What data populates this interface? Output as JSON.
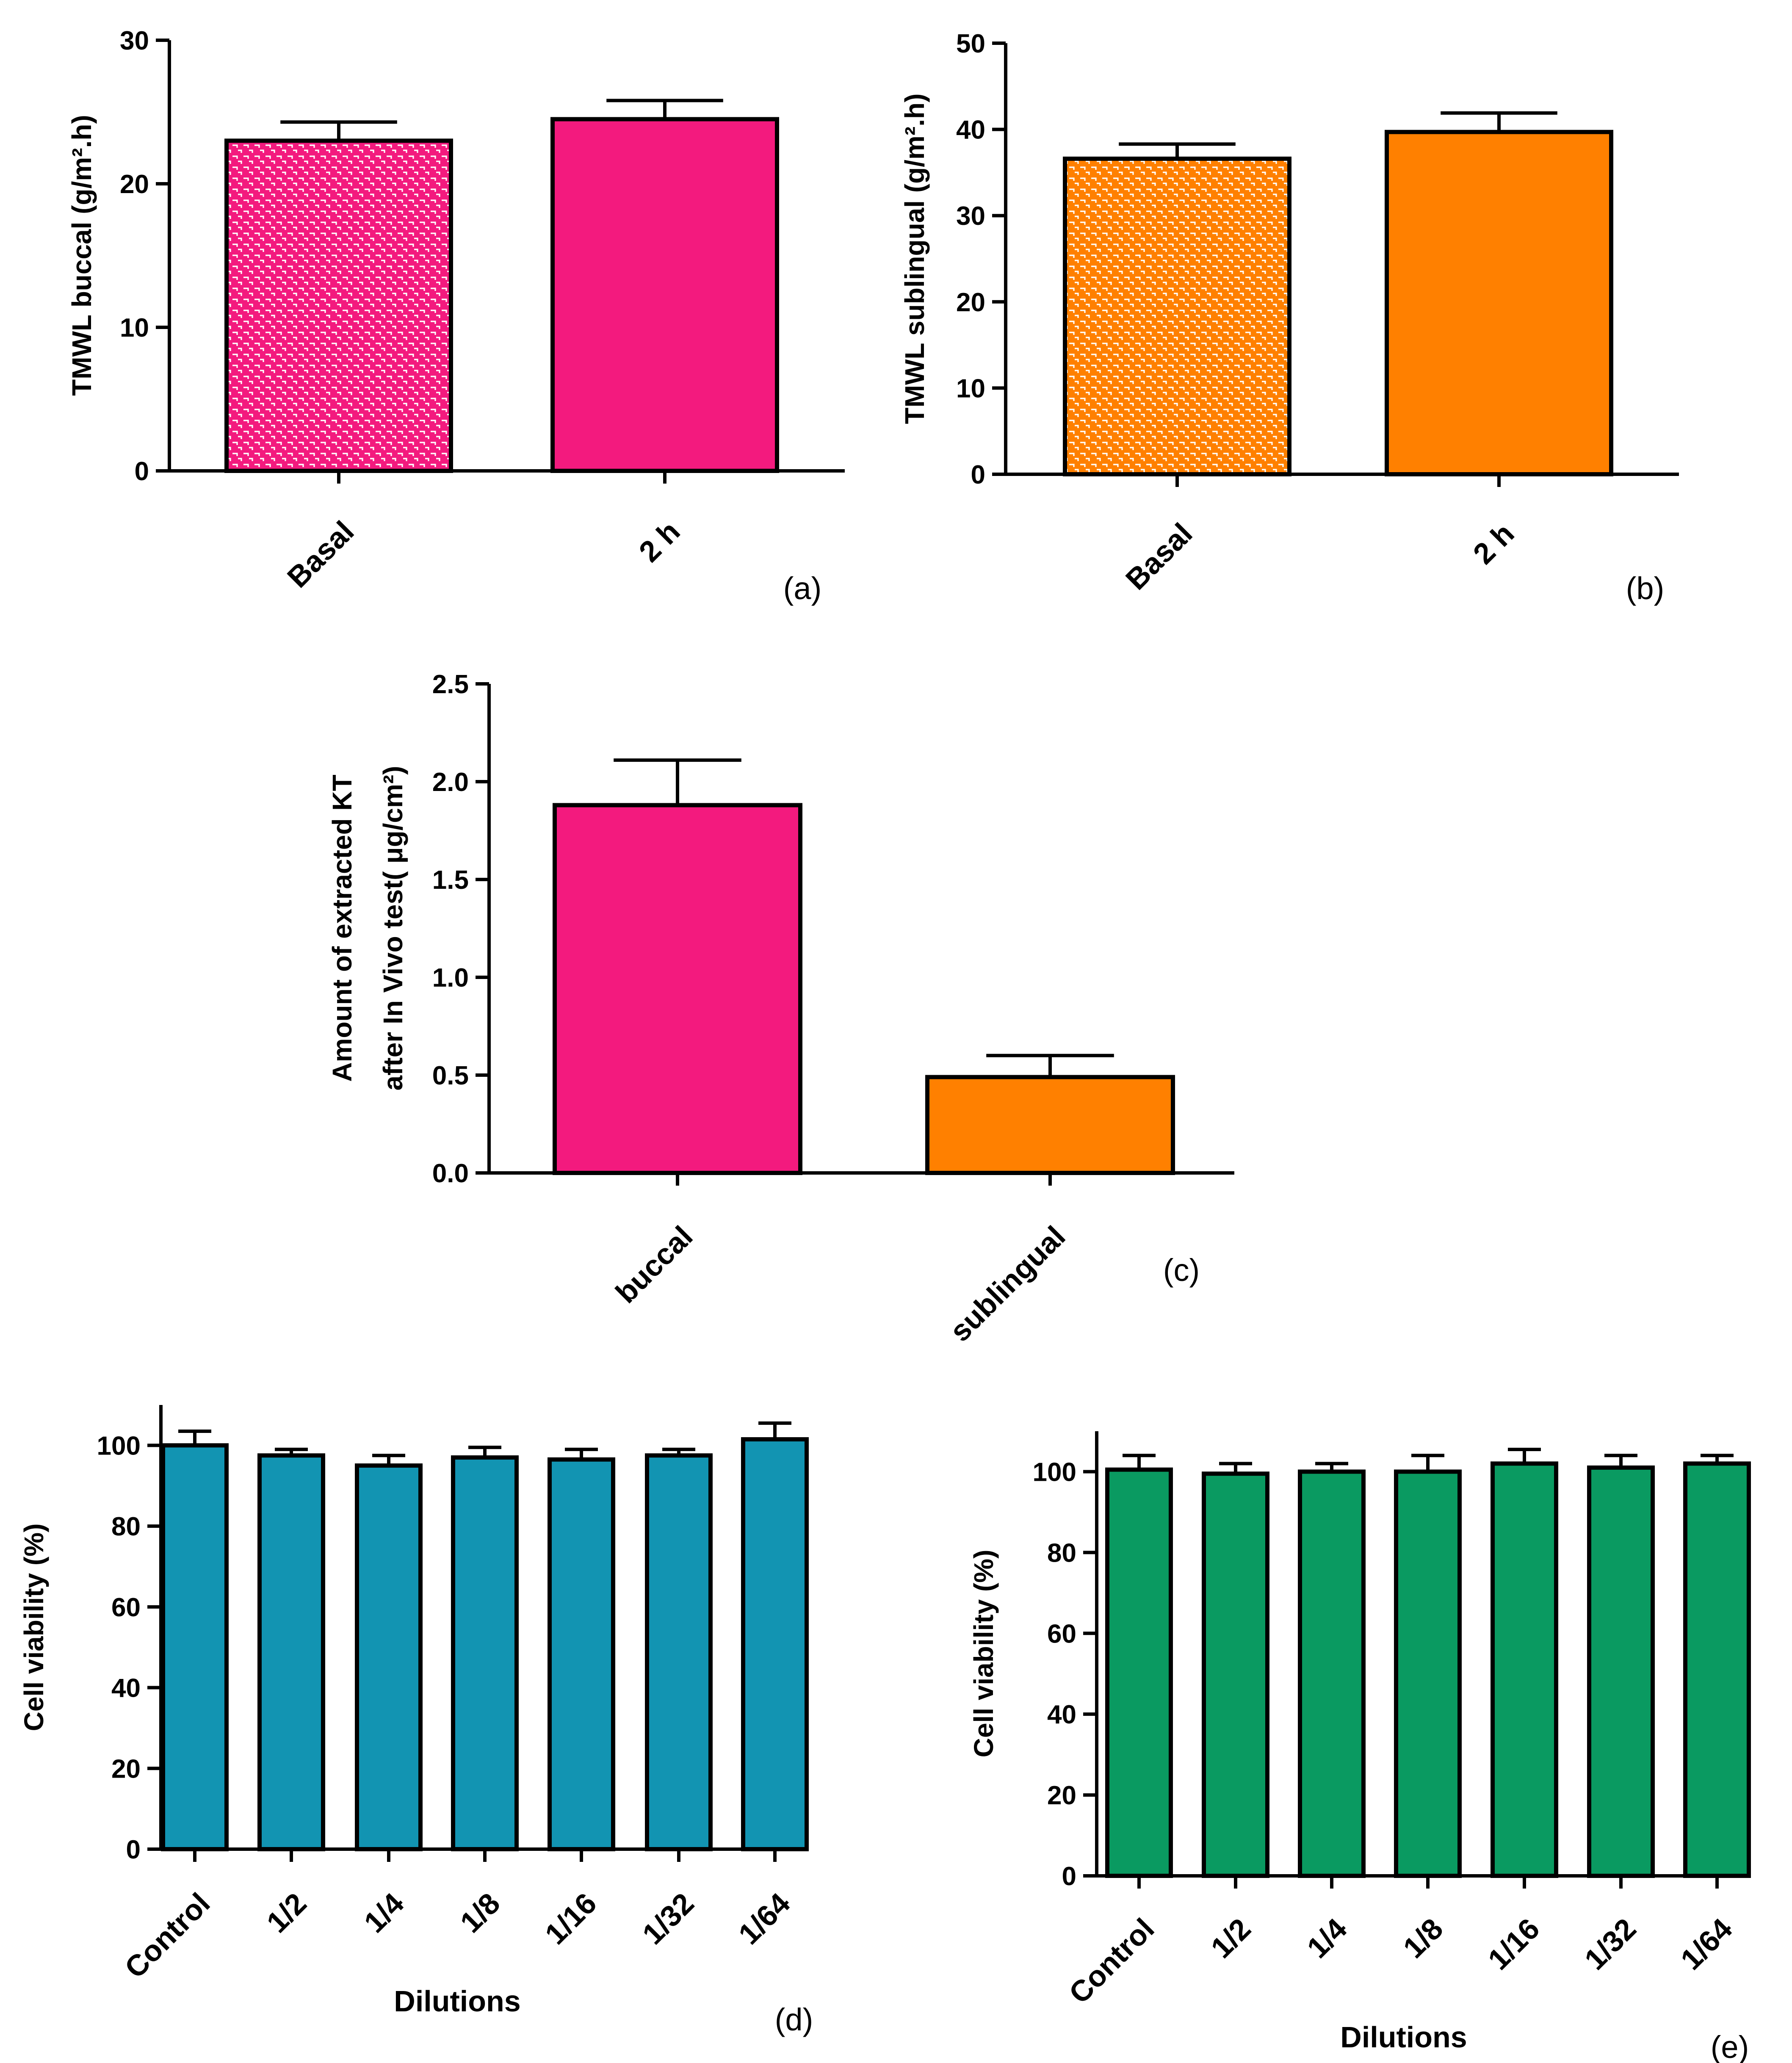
{
  "chart_data": [
    {
      "type": "bar",
      "panel_label": "(a)",
      "categories": [
        "Basal",
        "2 h"
      ],
      "values": [
        23.0,
        24.5
      ],
      "errors": [
        1.3,
        1.3
      ],
      "fills": [
        "#f31a7e",
        "#f31a7e"
      ],
      "patterns": [
        true,
        false
      ],
      "ylabel": "TMWL buccal (g/m².h)",
      "xlabel": "",
      "ylim": [
        0,
        30
      ],
      "yticks": [
        0,
        10,
        20,
        30
      ],
      "tick_labels": [
        "0",
        "10",
        "20",
        "30"
      ],
      "grid": false
    },
    {
      "type": "bar",
      "panel_label": "(b)",
      "categories": [
        "Basal",
        "2 h"
      ],
      "values": [
        36.6,
        39.7
      ],
      "errors": [
        1.7,
        2.2
      ],
      "fills": [
        "#ff8000",
        "#ff8000"
      ],
      "patterns": [
        true,
        false
      ],
      "ylabel": "TMWL sublingual (g/m².h)",
      "xlabel": "",
      "ylim": [
        0,
        50
      ],
      "yticks": [
        0,
        10,
        20,
        30,
        40,
        50
      ],
      "tick_labels": [
        "0",
        "10",
        "20",
        "30",
        "40",
        "50"
      ],
      "grid": false
    },
    {
      "type": "bar",
      "panel_label": "(c)",
      "categories": [
        "buccal",
        "sublingual"
      ],
      "values": [
        1.88,
        0.49
      ],
      "errors": [
        0.23,
        0.11
      ],
      "fills": [
        "#f31a7e",
        "#ff8000"
      ],
      "patterns": [
        false,
        false
      ],
      "ylabel": "Amount of extracted KT after In Vivo test( μg/cm²)",
      "ylabel_lines": [
        "Amount of extracted KT",
        "after In Vivo test( μg/cm²)"
      ],
      "xlabel": "",
      "ylim": [
        0,
        2.5
      ],
      "yticks": [
        0,
        0.5,
        1,
        1.5,
        2,
        2.5
      ],
      "tick_labels": [
        "0.0",
        "0.5",
        "1.0",
        "1.5",
        "2.0",
        "2.5"
      ],
      "grid": false
    },
    {
      "type": "bar",
      "panel_label": "(d)",
      "categories": [
        "Control",
        "1/2",
        "1/4",
        "1/8",
        "1/16",
        "1/32",
        "1/64"
      ],
      "values": [
        100,
        97.5,
        95,
        97,
        96.5,
        97.5,
        101.5
      ],
      "errors": [
        3.5,
        1.5,
        2.5,
        2.5,
        2.5,
        1.5,
        4
      ],
      "fills": [
        "#1294b2",
        "#1294b2",
        "#1294b2",
        "#1294b2",
        "#1294b2",
        "#1294b2",
        "#1294b2"
      ],
      "patterns": [
        false,
        false,
        false,
        false,
        false,
        false,
        false
      ],
      "ylabel": "Cell viability (%)",
      "xlabel": "Dilutions",
      "ylim": [
        0,
        110
      ],
      "yticks": [
        0,
        20,
        40,
        60,
        80,
        100
      ],
      "tick_labels": [
        "0",
        "20",
        "40",
        "60",
        "80",
        "100"
      ],
      "grid": false
    },
    {
      "type": "bar",
      "panel_label": "(e)",
      "categories": [
        "Control",
        "1/2",
        "1/4",
        "1/8",
        "1/16",
        "1/32",
        "1/64"
      ],
      "values": [
        100.5,
        99.5,
        100,
        100,
        102,
        101,
        102
      ],
      "errors": [
        3.5,
        2.5,
        2,
        4,
        3.5,
        3,
        2
      ],
      "fills": [
        "#0a9a61",
        "#0a9a61",
        "#0a9a61",
        "#0a9a61",
        "#0a9a61",
        "#0a9a61",
        "#0a9a61"
      ],
      "patterns": [
        false,
        false,
        false,
        false,
        false,
        false,
        false
      ],
      "ylabel": "Cell viability (%)",
      "xlabel": "Dilutions",
      "ylim": [
        0,
        110
      ],
      "yticks": [
        0,
        20,
        40,
        60,
        80,
        100
      ],
      "tick_labels": [
        "0",
        "20",
        "40",
        "60",
        "80",
        "100"
      ],
      "grid": false
    }
  ]
}
